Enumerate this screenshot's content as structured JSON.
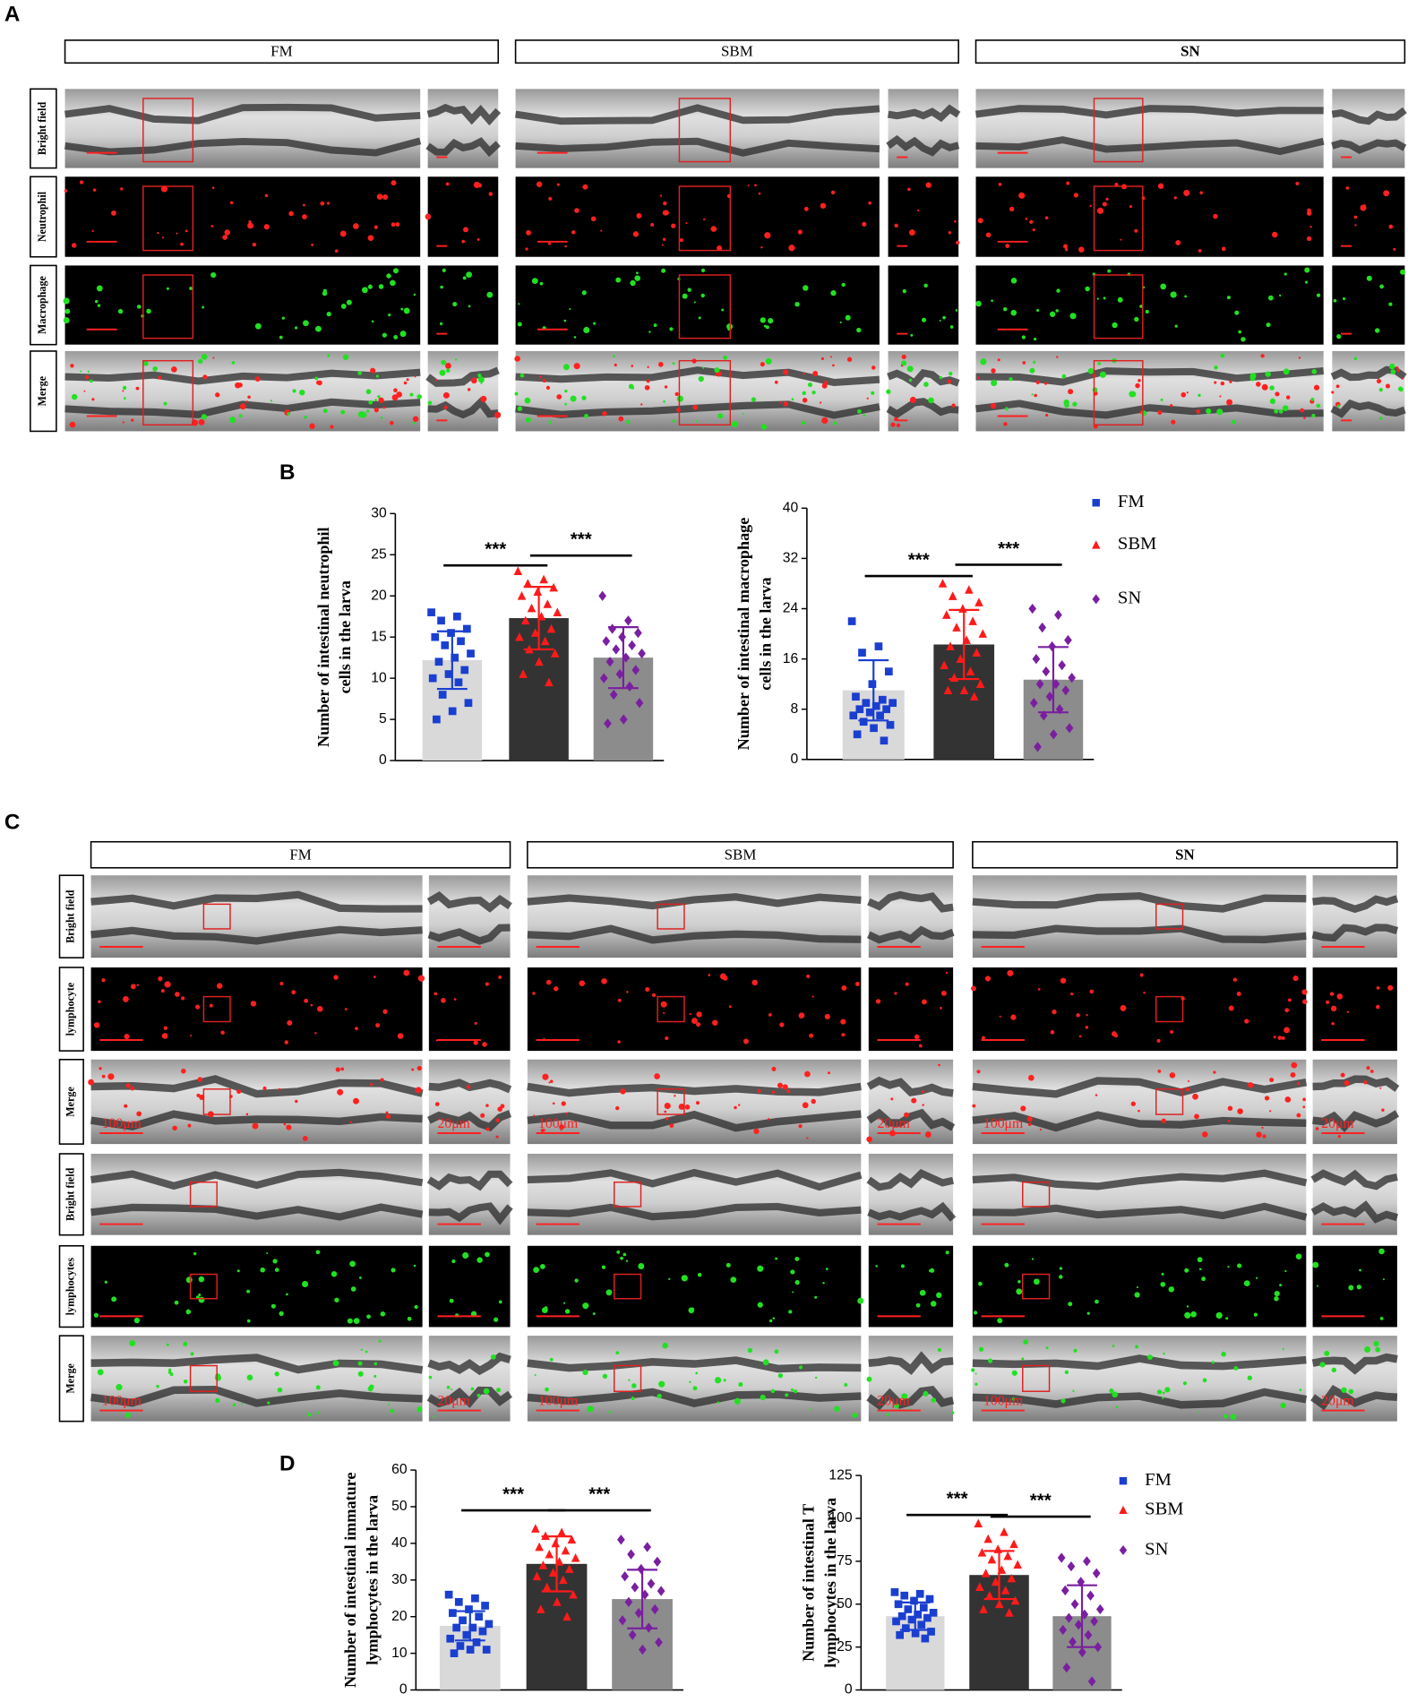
{
  "panel_labels": [
    "A",
    "B",
    "C",
    "D"
  ],
  "panel_a": {
    "columns": [
      "FM",
      "SBM",
      "SN"
    ],
    "rows": [
      "Bright field",
      "Neutrophil",
      "Macrophage",
      "Merge"
    ]
  },
  "panel_c": {
    "columns": [
      "FM",
      "SBM",
      "SN"
    ],
    "rows": [
      "Bright field",
      "lymphocyte",
      "Merge",
      "Bright field",
      "lymphocytes",
      "Merge"
    ],
    "scale_labels": {
      "main": "100μm",
      "inset": "20μm"
    }
  },
  "chart_data": [
    {
      "type": "bar",
      "ylabel": [
        "Number of intestinal neutrophil",
        "cells in the larva"
      ],
      "ylim": [
        0,
        30
      ],
      "yticks": [
        0,
        5,
        10,
        15,
        20,
        25,
        30
      ],
      "series": [
        {
          "bar_color": "#d9d9d9",
          "color": "#1a3fd0",
          "marker": "square",
          "mean": 12.2,
          "sd": 3.5,
          "values": [
            18,
            17.5,
            17,
            16,
            15.5,
            15,
            14.5,
            14,
            13,
            12.5,
            12,
            11,
            10.5,
            10,
            9.5,
            8,
            7,
            6,
            5
          ]
        },
        {
          "bar_color": "#333333",
          "color": "#ff1a1a",
          "marker": "triangle",
          "mean": 17.3,
          "sd": 3.8,
          "values": [
            23,
            22,
            21.5,
            21,
            20.5,
            20,
            19,
            18.5,
            18,
            17.5,
            17,
            16,
            15.5,
            15,
            14.5,
            13.5,
            13,
            12,
            10.5,
            9.5
          ]
        },
        {
          "bar_color": "#8c8c8c",
          "color": "#7a1fa0",
          "marker": "diamond",
          "mean": 12.5,
          "sd": 3.7,
          "values": [
            20,
            17,
            16,
            15.5,
            15,
            14.5,
            14,
            13.5,
            13,
            12.5,
            12,
            11,
            10.5,
            10,
            9,
            8,
            7,
            5,
            4.5
          ]
        }
      ],
      "annotations": [
        {
          "text": "***",
          "y": 23.7
        },
        {
          "text": "***",
          "y": 24.9
        }
      ]
    },
    {
      "type": "bar",
      "ylabel": [
        "Number of intestinal macrophage",
        "cells in the larva"
      ],
      "ylim": [
        0,
        40
      ],
      "yticks": [
        0,
        8,
        16,
        24,
        32,
        40
      ],
      "legend": "right",
      "series": [
        {
          "name": "FM",
          "bar_color": "#d9d9d9",
          "color": "#1a3fd0",
          "marker": "square",
          "mean": 11,
          "sd": 4.8,
          "values": [
            22,
            18,
            17,
            14,
            12,
            10,
            9.5,
            9,
            9,
            8.5,
            8,
            8,
            7.5,
            7,
            7,
            6,
            5.5,
            5,
            4,
            3
          ]
        },
        {
          "name": "SBM",
          "bar_color": "#333333",
          "color": "#ff1a1a",
          "marker": "triangle",
          "mean": 18.3,
          "sd": 5.5,
          "values": [
            28,
            27,
            26,
            25,
            24,
            23,
            22,
            21,
            20,
            19,
            18,
            17,
            16,
            15,
            14,
            13,
            12,
            11,
            11,
            10
          ]
        },
        {
          "name": "SN",
          "bar_color": "#8c8c8c",
          "color": "#7a1fa0",
          "marker": "diamond",
          "mean": 12.7,
          "sd": 5.2,
          "values": [
            24,
            23,
            21,
            19,
            18,
            16,
            15,
            14,
            13,
            12,
            12,
            11,
            10,
            9,
            8,
            7,
            5,
            4,
            2
          ]
        }
      ],
      "annotations": [
        {
          "text": "***",
          "y": 29.2
        },
        {
          "text": "***",
          "y": 31
        }
      ]
    },
    {
      "type": "bar",
      "ylabel": [
        "Number of intestinal immature",
        "lymphocytes in the larva"
      ],
      "ylim": [
        0,
        60
      ],
      "yticks": [
        0,
        10,
        20,
        30,
        40,
        50,
        60
      ],
      "series": [
        {
          "bar_color": "#d9d9d9",
          "color": "#1a3fd0",
          "marker": "square",
          "mean": 17.5,
          "sd": 4,
          "values": [
            26,
            25,
            24,
            23,
            22,
            21,
            20,
            19,
            18,
            17,
            17,
            16,
            15,
            14,
            13,
            12,
            11,
            11,
            10
          ]
        },
        {
          "bar_color": "#333333",
          "color": "#ff1a1a",
          "marker": "triangle",
          "mean": 34.4,
          "sd": 7.5,
          "values": [
            44,
            43,
            42,
            41,
            40,
            39,
            38,
            37,
            36,
            35,
            34,
            33,
            32,
            31,
            30,
            28,
            26,
            24,
            22,
            20
          ]
        },
        {
          "bar_color": "#8c8c8c",
          "color": "#7a1fa0",
          "marker": "diamond",
          "mean": 24.8,
          "sd": 8,
          "values": [
            41,
            39,
            37,
            35,
            33,
            31,
            29,
            28,
            27,
            26,
            24,
            22,
            21,
            19,
            17,
            15,
            13,
            11
          ]
        }
      ],
      "annotations": [
        {
          "text": "***",
          "y": 49
        },
        {
          "text": "***",
          "y": 49
        }
      ]
    },
    {
      "type": "bar",
      "ylabel": [
        "Number of intestinal T",
        "lymphocytes in the larva"
      ],
      "ylim": [
        0,
        125
      ],
      "yticks": [
        0,
        25,
        50,
        75,
        100,
        125
      ],
      "legend": "right",
      "series": [
        {
          "name": "FM",
          "bar_color": "#d9d9d9",
          "color": "#1a3fd0",
          "marker": "square",
          "mean": 43,
          "sd": 8,
          "values": [
            57,
            56,
            55,
            53,
            52,
            50,
            48,
            47,
            45,
            44,
            43,
            42,
            41,
            40,
            38,
            36,
            34,
            33,
            32,
            30
          ]
        },
        {
          "name": "SBM",
          "bar_color": "#333333",
          "color": "#ff1a1a",
          "marker": "triangle",
          "mean": 67,
          "sd": 14,
          "values": [
            97,
            92,
            88,
            85,
            82,
            80,
            78,
            76,
            73,
            70,
            68,
            65,
            63,
            60,
            58,
            55,
            52,
            50,
            47,
            45
          ]
        },
        {
          "name": "SN",
          "bar_color": "#8c8c8c",
          "color": "#7a1fa0",
          "marker": "diamond",
          "mean": 43,
          "sd": 18,
          "values": [
            77,
            75,
            72,
            68,
            63,
            58,
            55,
            50,
            47,
            44,
            42,
            40,
            38,
            35,
            32,
            28,
            25,
            22,
            13,
            5
          ]
        }
      ],
      "annotations": [
        {
          "text": "***",
          "y": 102
        },
        {
          "text": "***",
          "y": 101
        }
      ]
    }
  ]
}
